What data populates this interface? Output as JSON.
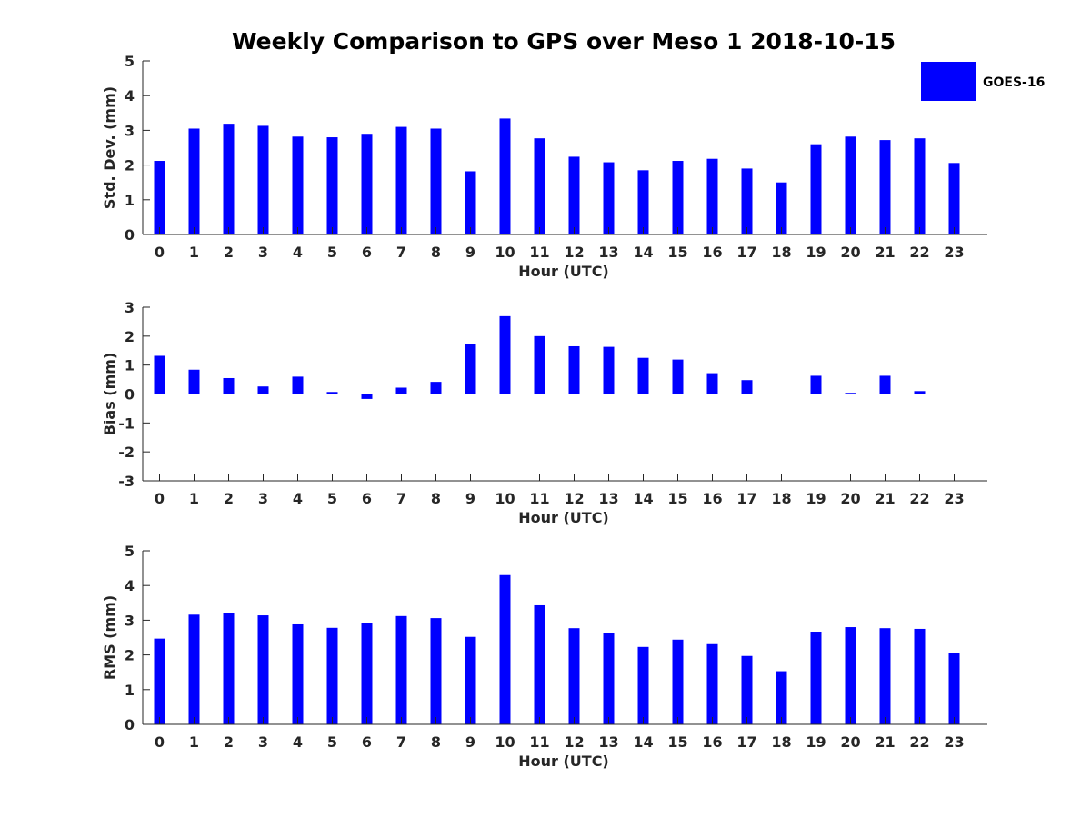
{
  "title": "Weekly Comparison to GPS over Meso 1 2018-10-15",
  "legend": {
    "label": "GOES-16",
    "color": "#0000ff"
  },
  "chart_data": [
    {
      "type": "bar",
      "id": "std",
      "xlabel": "Hour (UTC)",
      "ylabel": "Std. Dev. (mm)",
      "ylim": [
        0,
        5
      ],
      "yticks": [
        0,
        1,
        2,
        3,
        4,
        5
      ],
      "categories": [
        "0",
        "1",
        "2",
        "3",
        "4",
        "5",
        "6",
        "7",
        "8",
        "9",
        "10",
        "11",
        "12",
        "13",
        "14",
        "15",
        "16",
        "17",
        "18",
        "19",
        "20",
        "21",
        "22",
        "23"
      ],
      "series": [
        {
          "name": "GOES-16",
          "values": [
            2.12,
            3.05,
            3.19,
            3.13,
            2.82,
            2.8,
            2.9,
            3.1,
            3.05,
            1.82,
            3.34,
            2.77,
            2.24,
            2.08,
            1.85,
            2.12,
            2.18,
            1.9,
            1.5,
            2.6,
            2.82,
            2.72,
            2.77,
            2.06
          ]
        }
      ]
    },
    {
      "type": "bar",
      "id": "bias",
      "xlabel": "Hour (UTC)",
      "ylabel": "Bias (mm)",
      "ylim": [
        -3,
        3
      ],
      "yticks": [
        -3,
        -2,
        -1,
        0,
        1,
        2,
        3
      ],
      "categories": [
        "0",
        "1",
        "2",
        "3",
        "4",
        "5",
        "6",
        "7",
        "8",
        "9",
        "10",
        "11",
        "12",
        "13",
        "14",
        "15",
        "16",
        "17",
        "18",
        "19",
        "20",
        "21",
        "22",
        "23"
      ],
      "series": [
        {
          "name": "GOES-16",
          "values": [
            1.32,
            0.84,
            0.55,
            0.26,
            0.6,
            0.07,
            -0.17,
            0.22,
            0.42,
            1.72,
            2.69,
            2.0,
            1.65,
            1.63,
            1.25,
            1.19,
            0.72,
            0.48,
            0.0,
            0.63,
            0.04,
            0.63,
            0.1,
            0.0
          ]
        }
      ]
    },
    {
      "type": "bar",
      "id": "rms",
      "xlabel": "Hour (UTC)",
      "ylabel": "RMS (mm)",
      "ylim": [
        0,
        5
      ],
      "yticks": [
        0,
        1,
        2,
        3,
        4,
        5
      ],
      "categories": [
        "0",
        "1",
        "2",
        "3",
        "4",
        "5",
        "6",
        "7",
        "8",
        "9",
        "10",
        "11",
        "12",
        "13",
        "14",
        "15",
        "16",
        "17",
        "18",
        "19",
        "20",
        "21",
        "22",
        "23"
      ],
      "series": [
        {
          "name": "GOES-16",
          "values": [
            2.47,
            3.16,
            3.22,
            3.14,
            2.88,
            2.78,
            2.91,
            3.12,
            3.06,
            2.52,
            4.3,
            3.43,
            2.77,
            2.62,
            2.23,
            2.44,
            2.31,
            1.97,
            1.53,
            2.67,
            2.8,
            2.77,
            2.75,
            2.05
          ]
        }
      ]
    }
  ]
}
